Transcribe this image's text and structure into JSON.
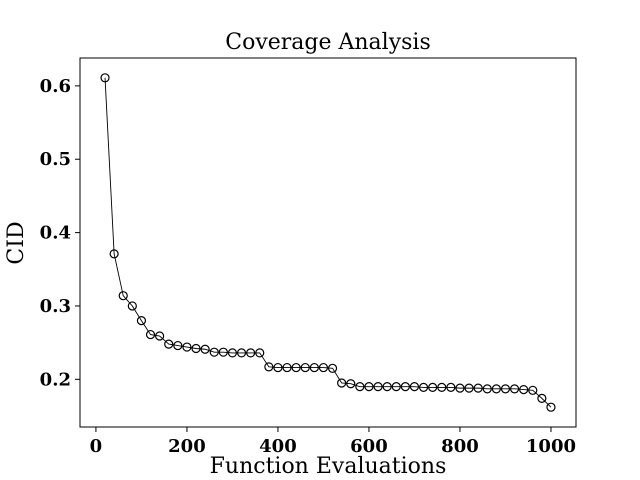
{
  "chart_data": {
    "type": "line",
    "title": "Coverage Analysis",
    "xlabel": "Function Evaluations",
    "ylabel": "CID",
    "xlim": [
      -35,
      1055
    ],
    "ylim": [
      0.135,
      0.638
    ],
    "xticks": [
      0,
      200,
      400,
      600,
      800,
      1000
    ],
    "xtick_labels": [
      "0",
      "200",
      "400",
      "600",
      "800",
      "1000"
    ],
    "yticks": [
      0.2,
      0.3,
      0.4,
      0.5,
      0.6
    ],
    "ytick_labels": [
      "0.2",
      "0.3",
      "0.4",
      "0.5",
      "0.6"
    ],
    "grid": false,
    "marker": "open-circle",
    "line_color": "#000000",
    "x": [
      20,
      40,
      60,
      80,
      100,
      120,
      140,
      160,
      180,
      200,
      220,
      240,
      260,
      280,
      300,
      320,
      340,
      360,
      380,
      400,
      420,
      440,
      460,
      480,
      500,
      520,
      540,
      560,
      580,
      600,
      620,
      640,
      660,
      680,
      700,
      720,
      740,
      760,
      780,
      800,
      820,
      840,
      860,
      880,
      900,
      920,
      940,
      960,
      980,
      1000
    ],
    "y": [
      0.611,
      0.371,
      0.314,
      0.3,
      0.28,
      0.261,
      0.259,
      0.248,
      0.246,
      0.244,
      0.242,
      0.241,
      0.237,
      0.237,
      0.236,
      0.236,
      0.236,
      0.236,
      0.217,
      0.216,
      0.216,
      0.216,
      0.216,
      0.216,
      0.216,
      0.215,
      0.195,
      0.194,
      0.19,
      0.19,
      0.19,
      0.19,
      0.19,
      0.19,
      0.19,
      0.189,
      0.189,
      0.189,
      0.189,
      0.188,
      0.188,
      0.188,
      0.187,
      0.187,
      0.187,
      0.187,
      0.186,
      0.185,
      0.174,
      0.162
    ]
  }
}
